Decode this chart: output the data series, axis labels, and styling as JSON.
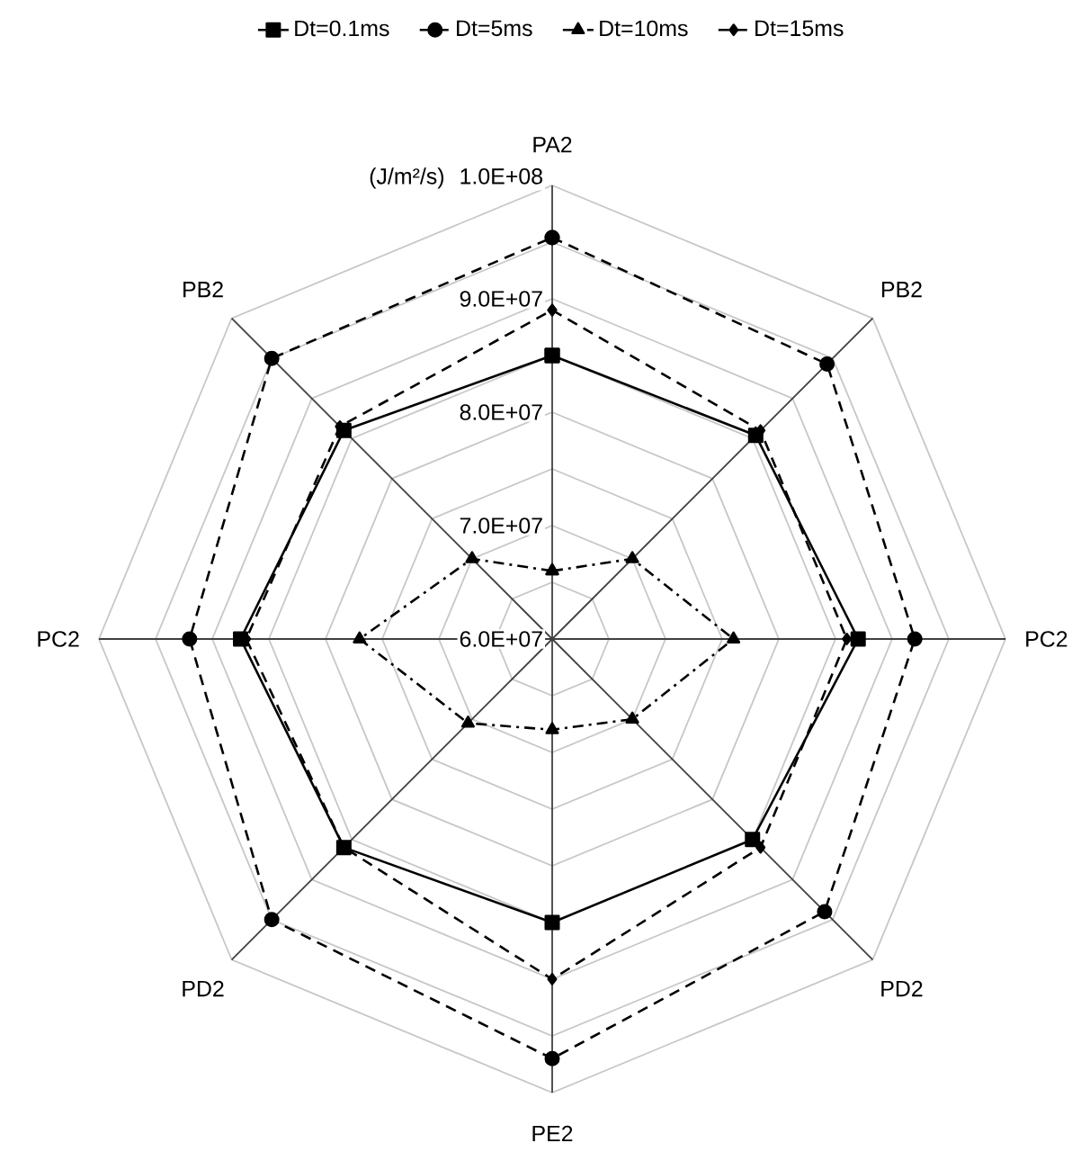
{
  "chart_data": {
    "type": "radar",
    "ylabel": "(J/m²/s)",
    "categories": [
      "PA2",
      "PB2",
      "PC2",
      "PD2",
      "PE2",
      "PD2",
      "PC2",
      "PB2"
    ],
    "ylim": [
      60000000,
      100000000
    ],
    "yticks": [
      {
        "value": 60000000,
        "label": "6.0E+07"
      },
      {
        "value": 70000000,
        "label": "7.0E+07"
      },
      {
        "value": 80000000,
        "label": "8.0E+07"
      },
      {
        "value": 90000000,
        "label": "9.0E+07"
      },
      {
        "value": 100000000,
        "label": "1.0E+08"
      }
    ],
    "grid": true,
    "legend": "top",
    "series": [
      {
        "name": "Dt=0.1ms",
        "color": "#000000",
        "marker": "square",
        "line_style": "solid",
        "values": [
          85000000,
          85400000,
          87000000,
          85000000,
          85000000,
          86000000,
          87500000,
          86000000
        ]
      },
      {
        "name": "Dt=5ms",
        "color": "#000000",
        "marker": "circle",
        "line_style": "dashed",
        "values": [
          95400000,
          94300000,
          92000000,
          94000000,
          97000000,
          95000000,
          92000000,
          95000000
        ]
      },
      {
        "name": "Dt=10ms",
        "color": "#000000",
        "marker": "triangle",
        "line_style": "dashdot",
        "values": [
          66000000,
          70000000,
          76000000,
          70000000,
          68000000,
          70500000,
          77000000,
          70000000
        ]
      },
      {
        "name": "Dt=15ms",
        "color": "#000000",
        "marker": "diamond",
        "line_style": "dashed",
        "values": [
          89000000,
          86000000,
          86000000,
          86000000,
          90000000,
          86000000,
          87000000,
          86500000
        ]
      }
    ]
  }
}
